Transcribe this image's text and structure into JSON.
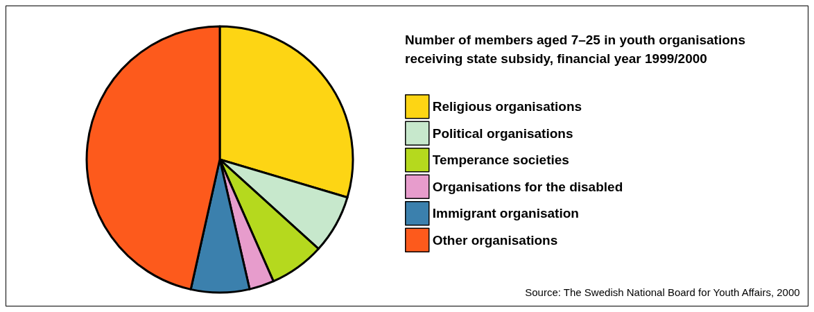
{
  "chart_data": {
    "type": "pie",
    "title": "Number of members aged 7–25 in youth organisations receiving state subsidy, financial year 1999/2000",
    "categories": [
      "Religious organisations",
      "Political organisations",
      "Temperance societies",
      "Organisations for the disabled",
      "Immigrant organisation",
      "Other organisations"
    ],
    "values": [
      29.6,
      7.1,
      6.7,
      3.0,
      7.1,
      46.5
    ],
    "colors": [
      "#fdd514",
      "#c7e8cc",
      "#b5d91e",
      "#e79ccc",
      "#3b80ad",
      "#fd5a1c"
    ],
    "legend": "right",
    "annotations": [
      "Source: The Swedish National Board for Youth Affairs, 2000"
    ]
  }
}
